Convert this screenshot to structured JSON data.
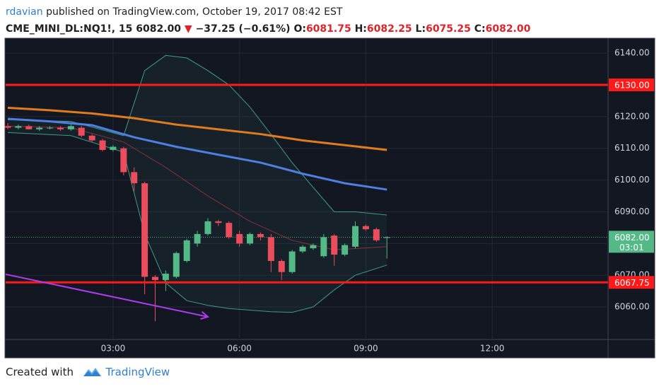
{
  "header": {
    "author": "rdavian",
    "published": "published on TradingView.com, October 19, 2017 08:42 EST",
    "symbol": "CME_MINI_DL:NQ1!, 15",
    "price": "6082.00",
    "arrow": "▼",
    "change": "−37.25 (−0.61%)",
    "o_key": "O:",
    "o": "6081.75",
    "h_key": "H:",
    "h": "6082.25",
    "l_key": "L:",
    "l": "6075.25",
    "c_key": "C:",
    "c": "6082.00"
  },
  "footer": {
    "created": "Created with",
    "brand": "TradingView"
  },
  "chart_data": {
    "type": "candlestick",
    "x": [
      0.5,
      0.75,
      1,
      1.25,
      1.5,
      1.75,
      2,
      2.25,
      2.5,
      2.75,
      3,
      3.25,
      3.5,
      3.75,
      4,
      4.25,
      4.5,
      4.75,
      5,
      5.25,
      5.5,
      5.75,
      6,
      6.25,
      6.5,
      6.75,
      7,
      7.25,
      7.5,
      7.75,
      8,
      8.25,
      8.5,
      8.75,
      9,
      9.25,
      9.5
    ],
    "open": [
      6117,
      6116.5,
      6117,
      6116,
      6116.5,
      6116.5,
      6116,
      6116.5,
      6114,
      6112.5,
      6109.5,
      6110,
      6102.5,
      6099,
      6069.5,
      6068.5,
      6069.5,
      6074.5,
      6080,
      6083,
      6087,
      6086.5,
      6083,
      6080,
      6083,
      6082,
      6074.5,
      6071,
      6077.5,
      6078.5,
      6076,
      6082.5,
      6076.5,
      6079,
      6085.5,
      6084.5,
      6081.75
    ],
    "high": [
      6118,
      6117.5,
      6117.5,
      6117,
      6117,
      6117,
      6117.5,
      6117,
      6114.5,
      6113,
      6111,
      6110.5,
      6104,
      6099.5,
      6070,
      6071.5,
      6077.5,
      6081.5,
      6084,
      6088,
      6087.5,
      6087,
      6084,
      6083.5,
      6083.5,
      6083,
      6075,
      6078,
      6079.5,
      6080,
      6083,
      6083,
      6080,
      6087,
      6086,
      6085,
      6082.25
    ],
    "low": [
      6116,
      6116,
      6116,
      6115.5,
      6116,
      6115.5,
      6115.5,
      6113.5,
      6112,
      6109,
      6109,
      6101.5,
      6096.5,
      6064,
      6055.5,
      6065,
      6069,
      6074,
      6079,
      6082.5,
      6085.5,
      6081.5,
      6079,
      6079.5,
      6081,
      6071,
      6068.5,
      6070.5,
      6077,
      6078,
      6075.5,
      6073,
      6076,
      6078.5,
      6084,
      6080.5,
      6075.25
    ],
    "close": [
      6116.5,
      6117,
      6116,
      6116.5,
      6116.5,
      6116,
      6117,
      6114,
      6112.5,
      6109.5,
      6110.5,
      6102.5,
      6099,
      6069.5,
      6068.5,
      6070.5,
      6077,
      6081,
      6083,
      6087,
      6086.5,
      6082,
      6080,
      6083,
      6082,
      6074.5,
      6071,
      6077.5,
      6079,
      6079.5,
      6082,
      6076.5,
      6079.5,
      6085.5,
      6084.5,
      6081,
      6082
    ],
    "up_color": "#53b987",
    "down_color": "#eb4d5c",
    "xlim": [
      0.45,
      14.75
    ],
    "ylim": [
      6049.75,
      6144.5
    ],
    "xticks": [
      {
        "value": 3,
        "label": "03:00"
      },
      {
        "value": 6,
        "label": "06:00"
      },
      {
        "value": 9,
        "label": "09:00"
      },
      {
        "value": 12,
        "label": "12:00"
      }
    ],
    "yticks": [
      {
        "value": 6060,
        "label": "6060.00"
      },
      {
        "value": 6070,
        "label": "6070.00"
      },
      {
        "value": 6080,
        "label": "6080.00"
      },
      {
        "value": 6090,
        "label": "6090.00"
      },
      {
        "value": 6100,
        "label": "6100.00"
      },
      {
        "value": 6110,
        "label": "6110.00"
      },
      {
        "value": 6120,
        "label": "6120.00"
      },
      {
        "value": 6130,
        "label": "6130.00"
      },
      {
        "value": 6140,
        "label": "6140.00"
      }
    ],
    "grid": true,
    "bands": {
      "color": "#3d9b8a",
      "x": [
        0.5,
        2,
        3.25,
        3.75,
        4.25,
        4.75,
        5.25,
        5.75,
        6.25,
        6.75,
        7.25,
        7.75,
        8.25,
        8.75,
        9.5
      ],
      "upper": [
        6119,
        6118.5,
        6114,
        6134.5,
        6139.3,
        6138.5,
        6134.5,
        6130,
        6123,
        6114.4,
        6105.5,
        6097.7,
        6090,
        6090,
        6089
      ],
      "lower": [
        6115,
        6114,
        6108.8,
        6083,
        6067.6,
        6062,
        6060.5,
        6059.5,
        6059,
        6058.5,
        6058.3,
        6060,
        6065.4,
        6070,
        6073.2
      ]
    },
    "lines": [
      {
        "color": "#e07b1f",
        "x": [
          0.5,
          1.5,
          2.5,
          3.5,
          4.5,
          5.5,
          6.5,
          7.5,
          8.5,
          9.5
        ],
        "values": [
          6122.8,
          6122,
          6121,
          6119.5,
          6117.5,
          6116,
          6114.5,
          6112.5,
          6111,
          6109.5
        ]
      },
      {
        "color": "#4f7fe0",
        "x": [
          0.5,
          1.5,
          2.5,
          3.5,
          4.5,
          5.5,
          6.5,
          7.5,
          8.5,
          9.5
        ],
        "values": [
          6119.3,
          6118.5,
          6117.3,
          6113.5,
          6110.5,
          6108,
          6105.5,
          6102,
          6099,
          6097
        ]
      },
      {
        "color": "#8c2f3a",
        "x": [
          0.5,
          2,
          3.25,
          4.25,
          5.25,
          6.25,
          7.25,
          8.25,
          9.5
        ],
        "values": [
          6117,
          6116.5,
          6112,
          6104,
          6095,
          6087,
          6081,
          6078,
          6079
        ]
      }
    ],
    "levels": [
      {
        "value": 6130,
        "label": "6130.00",
        "color": "#ff1a1a"
      },
      {
        "value": 6067.75,
        "label": "6067.75",
        "color": "#ff1a1a"
      }
    ],
    "last": {
      "value": 6082,
      "label": "6082.00",
      "countdown": "03:01",
      "color": "#53b987"
    },
    "arrow": {
      "color": "#b03cf0",
      "x": [
        0.45,
        5.25
      ],
      "values": [
        6070.3,
        6056.9
      ]
    }
  }
}
